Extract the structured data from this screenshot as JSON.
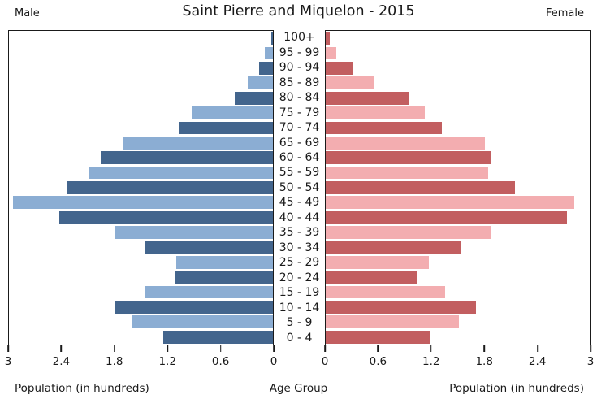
{
  "header": {
    "male_label": "Male",
    "title": "Saint Pierre and Miquelon - 2015",
    "female_label": "Female"
  },
  "footer": {
    "left_axis_title": "Population (in hundreds)",
    "center_axis_title": "Age Group",
    "right_axis_title": "Population (in hundreds)"
  },
  "chart_data": {
    "type": "bar",
    "subtype": "population-pyramid",
    "title": "Saint Pierre and Miquelon - 2015",
    "xlabel_left": "Population (in hundreds)",
    "xlabel_center": "Age Group",
    "xlabel_right": "Population (in hundreds)",
    "xlim": [
      0,
      3
    ],
    "x_ticks": [
      0,
      0.6,
      1.2,
      1.8,
      2.4,
      3
    ],
    "left_tick_labels_ltr": [
      "3",
      "2.4",
      "1.8",
      "1.2",
      "0.6",
      "0"
    ],
    "right_tick_labels_ltr": [
      "0",
      "0.6",
      "1.2",
      "1.8",
      "2.4",
      "3"
    ],
    "categories_top_to_bottom": [
      "100+",
      "95 - 99",
      "90 - 94",
      "85 - 89",
      "80 - 84",
      "75 - 79",
      "70 - 74",
      "65 - 69",
      "60 - 64",
      "55 - 59",
      "50 - 54",
      "45 - 49",
      "40 - 44",
      "35 - 39",
      "30 - 34",
      "25 - 29",
      "20 - 24",
      "15 - 19",
      "10 - 14",
      "5 - 9",
      "0 - 4"
    ],
    "series": [
      {
        "name": "Male",
        "side": "left",
        "values": [
          0.02,
          0.09,
          0.16,
          0.29,
          0.43,
          0.92,
          1.07,
          1.7,
          1.96,
          2.1,
          2.34,
          2.95,
          2.43,
          1.79,
          1.45,
          1.1,
          1.12,
          1.45,
          1.8,
          1.6,
          1.25
        ]
      },
      {
        "name": "Female",
        "side": "right",
        "values": [
          0.05,
          0.12,
          0.31,
          0.54,
          0.95,
          1.13,
          1.32,
          1.81,
          1.88,
          1.85,
          2.15,
          2.82,
          2.74,
          1.88,
          1.53,
          1.17,
          1.04,
          1.36,
          1.71,
          1.51,
          1.19
        ]
      }
    ],
    "colors": {
      "male_dark": "#43658d",
      "male_light": "#8badd3",
      "female_dark": "#c25e60",
      "female_light": "#f3adb0",
      "axis": "#1a1a1a",
      "background": "#ffffff"
    },
    "legend_position": "none",
    "grid": false
  }
}
